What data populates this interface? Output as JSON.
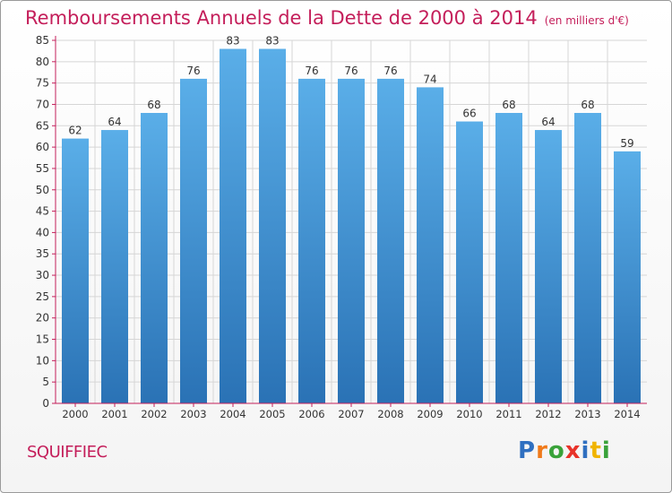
{
  "chart_data": {
    "type": "bar",
    "title": "Remboursements Annuels de la Dette de 2000 à 2014",
    "unit_label": "(en milliers d'€)",
    "categories": [
      "2000",
      "2001",
      "2002",
      "2003",
      "2004",
      "2005",
      "2006",
      "2007",
      "2008",
      "2009",
      "2010",
      "2011",
      "2012",
      "2013",
      "2014"
    ],
    "values": [
      62,
      64,
      68,
      76,
      83,
      83,
      76,
      76,
      76,
      74,
      66,
      68,
      64,
      68,
      59
    ],
    "ylim": [
      0,
      85
    ],
    "yticks": [
      0,
      5,
      10,
      15,
      20,
      25,
      30,
      35,
      40,
      45,
      50,
      55,
      60,
      65,
      70,
      75,
      80,
      85
    ],
    "grid": true,
    "bar_color_top": "#5aaee8",
    "bar_color_bottom": "#2a72b5"
  },
  "footer": {
    "city": "SQUIFFIEC",
    "logo_letters": [
      "P",
      "r",
      "o",
      "x",
      "i",
      "t",
      "i"
    ],
    "logo_colors": [
      "#2f6fc0",
      "#f07a1a",
      "#3aa23a",
      "#e8332a",
      "#2f6fc0",
      "#f0b400",
      "#3aa23a"
    ]
  },
  "colors": {
    "title": "#c41e5a",
    "axis": "#c41e5a",
    "grid": "#d6d6d6"
  }
}
